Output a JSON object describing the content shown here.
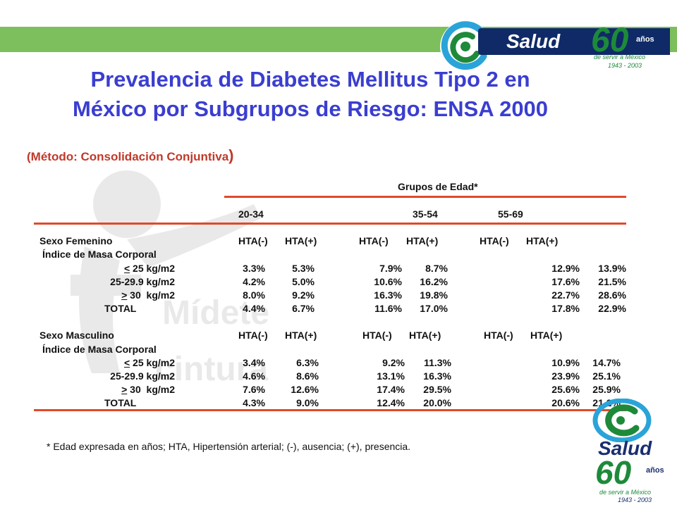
{
  "logo": {
    "brand": "Salud",
    "number": "60",
    "suffix": "años",
    "tagline": "de servir a México",
    "years": "1943 - 2003"
  },
  "watermark_text": [
    "Mídete",
    "cintura"
  ],
  "title_line1": "Prevalencia de Diabetes Mellitus Tipo 2 en",
  "title_line2": "México por Subgrupos de Riesgo: ENSA 2000",
  "subtitle": "(Método: Consolidación Conjuntiva",
  "subtitle_paren": ")",
  "table": {
    "group_header": "Grupos de Edad*",
    "age_groups": [
      "20-34",
      "35-54",
      "55-69"
    ],
    "sections": [
      {
        "label": "Sexo Femenino",
        "hta_headers": [
          "HTA(-)",
          "HTA(+)",
          "HTA(-)",
          "HTA(+)",
          "HTA(-)",
          "HTA(+)"
        ],
        "index_label": "Índice de Masa Corporal",
        "rows": [
          {
            "label": "< 25 kg/m2",
            "values": [
              "3.3%",
              "5.3%",
              "7.9%",
              "8.7%",
              "12.9%",
              "13.9%"
            ]
          },
          {
            "label": "25-29.9 kg/m2",
            "values": [
              "4.2%",
              "5.0%",
              "10.6%",
              "16.2%",
              "17.6%",
              "21.5%"
            ]
          },
          {
            "label": "> 30  kg/m2",
            "values": [
              "8.0%",
              "9.2%",
              "16.3%",
              "19.8%",
              "22.7%",
              "28.6%"
            ]
          },
          {
            "label": "TOTAL",
            "values": [
              "4.4%",
              "6.7%",
              "11.6%",
              "17.0%",
              "17.8%",
              "22.9%"
            ]
          }
        ]
      },
      {
        "label": "Sexo Masculino",
        "hta_headers": [
          "HTA(-)",
          "HTA(+)",
          "HTA(-)",
          "HTA(+)",
          "HTA(-)",
          "HTA(+)"
        ],
        "index_label": "Índice de Masa Corporal",
        "rows": [
          {
            "label": "< 25 kg/m2",
            "values": [
              "3.4%",
              "6.3%",
              "9.2%",
              "11.3%",
              "10.9%",
              "14.7%"
            ]
          },
          {
            "label": "25-29.9 kg/m2",
            "values": [
              "4.6%",
              "8.6%",
              "13.1%",
              "16.3%",
              "23.9%",
              "25.1%"
            ]
          },
          {
            "label": "> 30  kg/m2",
            "values": [
              "7.6%",
              "12.6%",
              "17.4%",
              "29.5%",
              "25.6%",
              "25.9%"
            ]
          },
          {
            "label": "TOTAL",
            "values": [
              "4.3%",
              "9.0%",
              "12.4%",
              "20.0%",
              "20.6%",
              "21.2%"
            ]
          }
        ]
      }
    ]
  },
  "footnote": "* Edad expresada en años; HTA, Hipertensión arterial; (-), ausencia; (+), presencia.",
  "colors": {
    "title": "#3a3ed0",
    "subtitle": "#c0392b",
    "rule": "#e04a2a",
    "band": "#7cbf5c",
    "navy": "#0f2a66",
    "green": "#1d8a3a"
  }
}
